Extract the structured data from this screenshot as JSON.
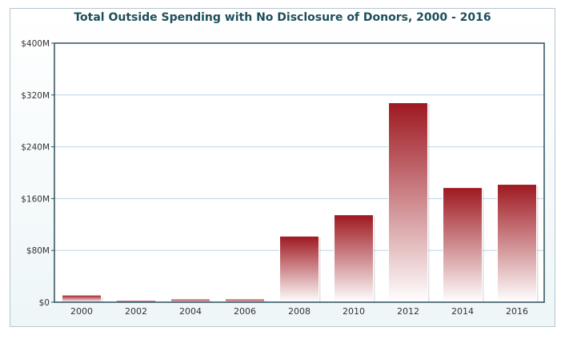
{
  "colors": {
    "bar_top": "#9e1820",
    "bar_bottom": "#ffffff",
    "grid": "#bcd5e4",
    "axis": "#2d4f5a",
    "title": "#1d4f5c"
  },
  "chart_data": {
    "type": "bar",
    "title": "Total Outside Spending with No Disclosure of Donors, 2000 - 2016",
    "xlabel": "",
    "ylabel": "",
    "categories": [
      "2000",
      "2002",
      "2004",
      "2006",
      "2008",
      "2010",
      "2012",
      "2014",
      "2016"
    ],
    "series": [
      {
        "values": [
          11,
          3,
          5,
          5,
          102,
          135,
          308,
          177,
          182
        ]
      }
    ],
    "unit": "$M",
    "ylim": [
      0,
      400
    ],
    "yticks": [
      0,
      80,
      160,
      240,
      320,
      400
    ],
    "ytick_labels": [
      "$0",
      "$80M",
      "$160M",
      "$240M",
      "$320M",
      "$400M"
    ],
    "grid": true,
    "legend": "none"
  }
}
